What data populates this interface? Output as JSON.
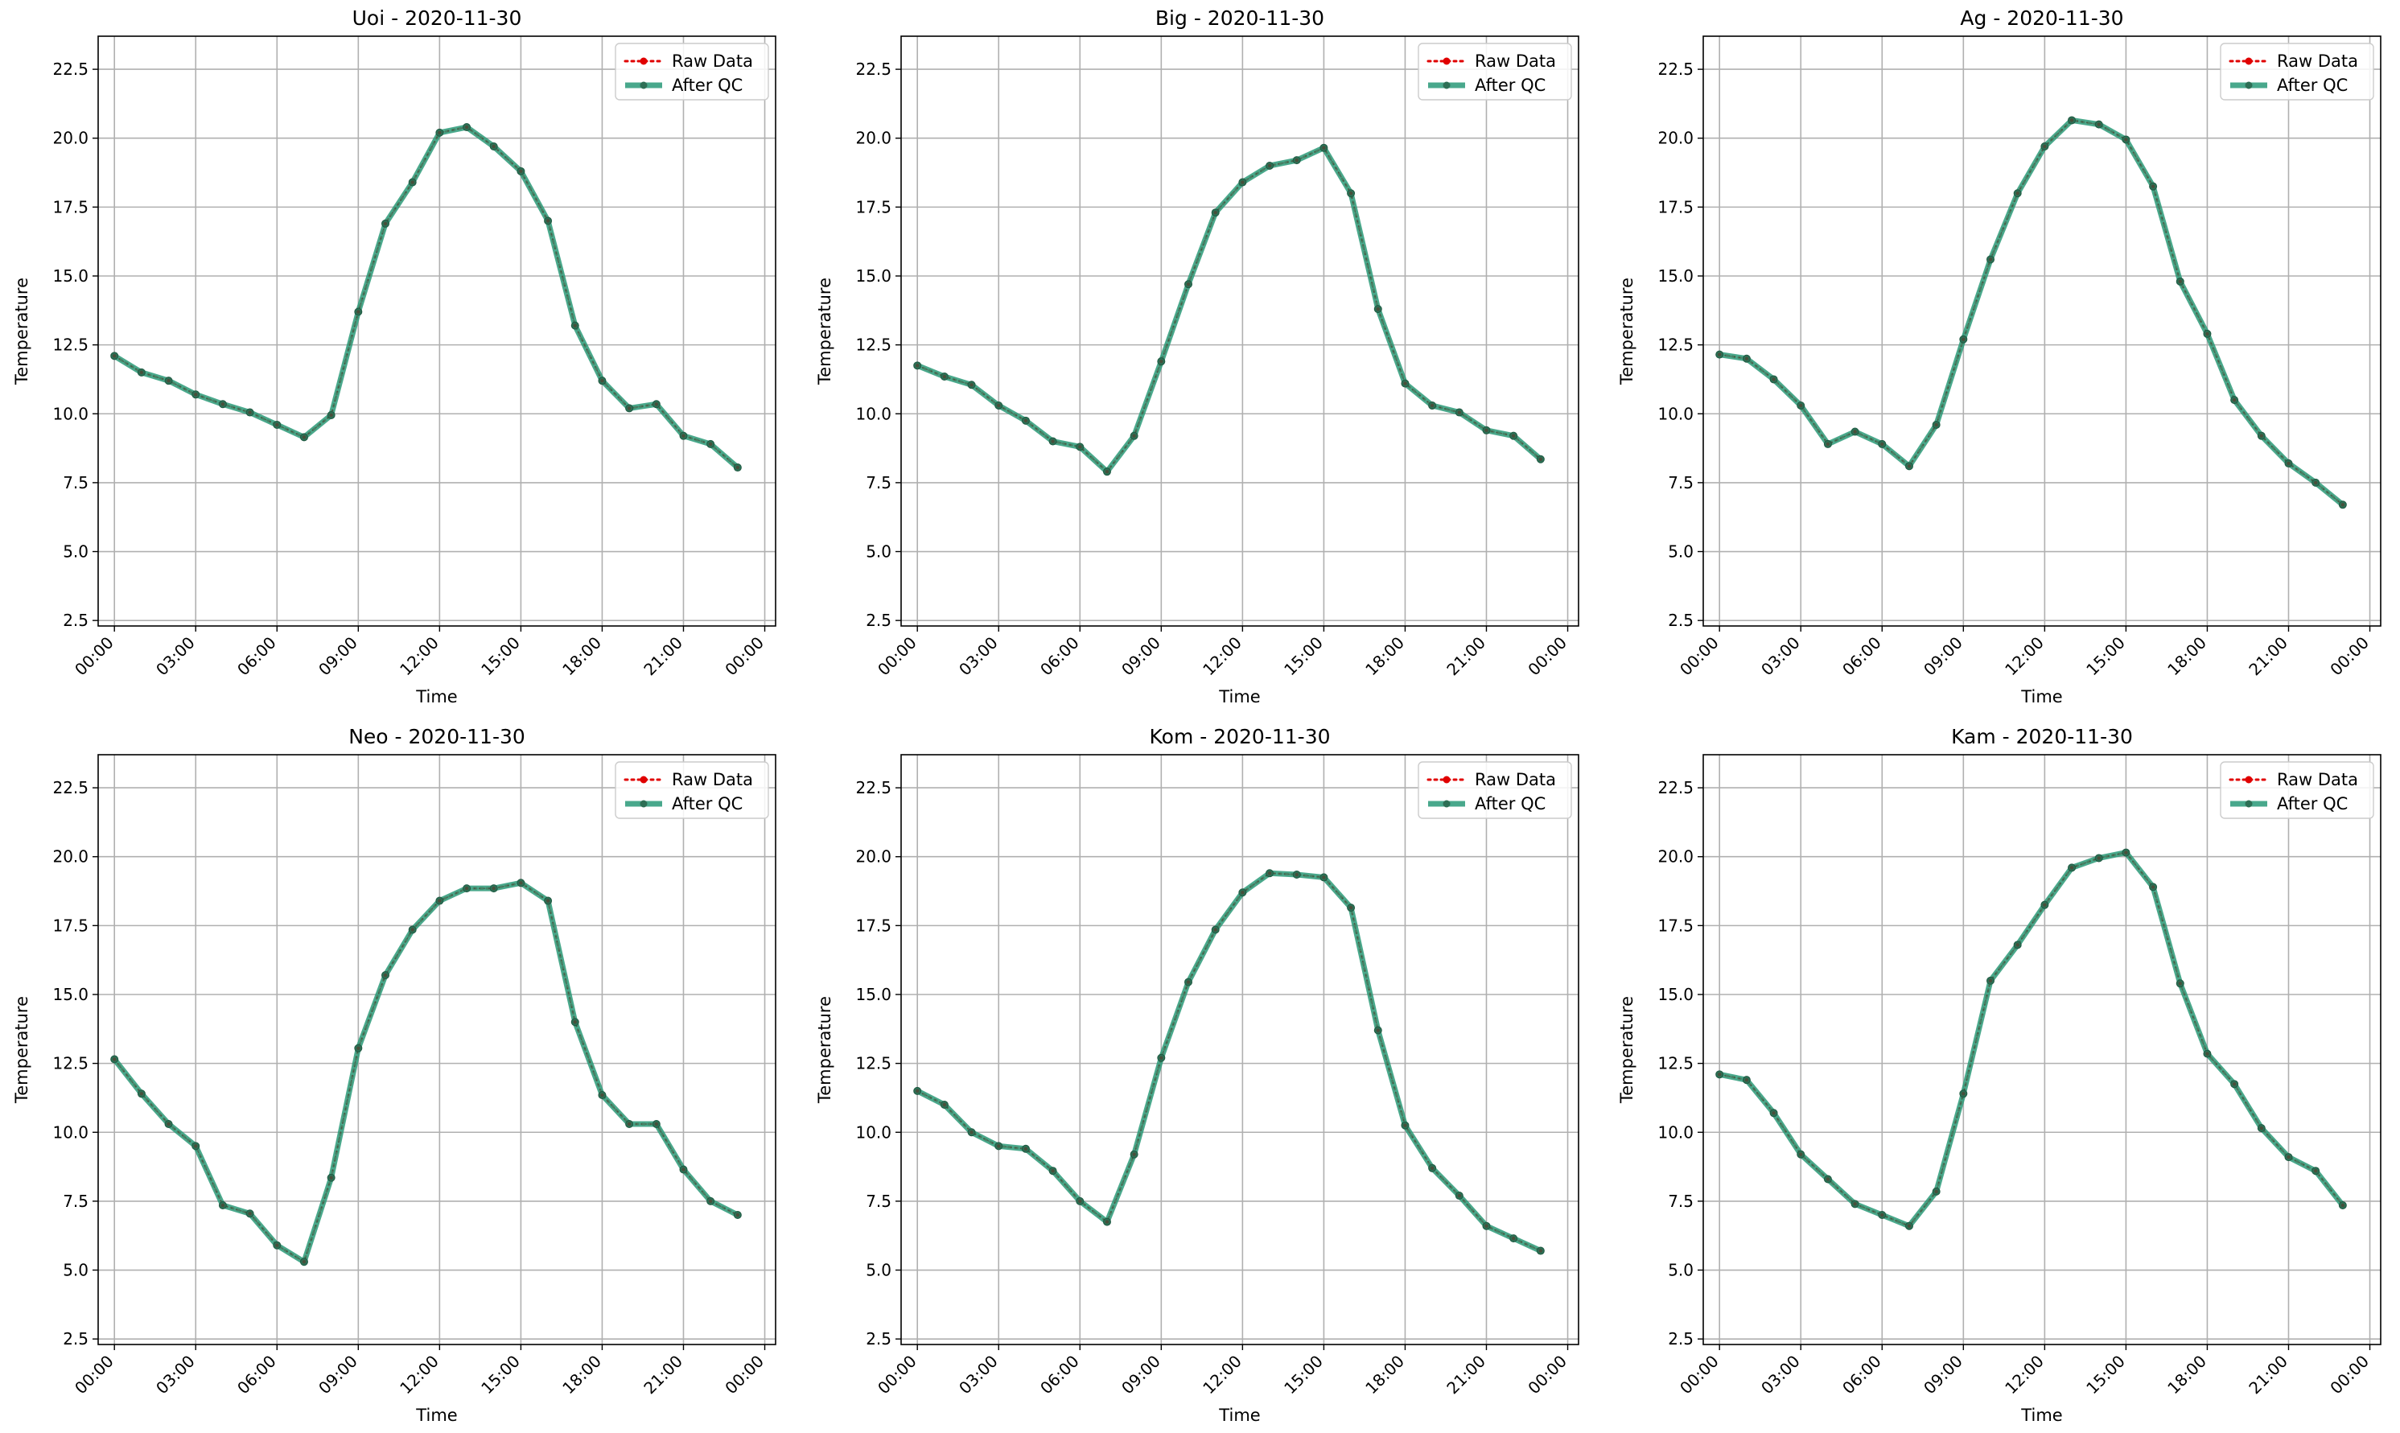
{
  "figure": {
    "xlabel": "Time",
    "ylabel": "Temperature",
    "legend": [
      "Raw Data",
      "After QC"
    ],
    "colors": {
      "raw": "#e00000",
      "qc": "#2a9a78",
      "grid": "#b0b0b0"
    }
  },
  "chart_data": [
    {
      "type": "line",
      "title": "Uoi - 2020-11-30",
      "xlabel": "Time",
      "ylabel": "Temperature",
      "xlim": [
        "00:00",
        "00:00"
      ],
      "xticks": [
        "00:00",
        "03:00",
        "06:00",
        "09:00",
        "12:00",
        "15:00",
        "18:00",
        "21:00",
        "00:00"
      ],
      "ylim": [
        2.3,
        23.7
      ],
      "yticks": [
        "2.5",
        "5.0",
        "7.5",
        "10.0",
        "12.5",
        "15.0",
        "17.5",
        "20.0",
        "22.5"
      ],
      "grid": true,
      "legend_position": "top-right",
      "x": [
        "00:00",
        "01:00",
        "02:00",
        "03:00",
        "04:00",
        "05:00",
        "06:00",
        "07:00",
        "08:00",
        "09:00",
        "10:00",
        "11:00",
        "12:00",
        "13:00",
        "14:00",
        "15:00",
        "16:00",
        "17:00",
        "18:00",
        "19:00",
        "20:00",
        "21:00",
        "22:00",
        "23:00"
      ],
      "series": [
        {
          "name": "Raw Data",
          "values": [
            12.1,
            11.5,
            11.2,
            10.7,
            10.35,
            10.05,
            9.6,
            9.15,
            9.95,
            13.7,
            16.9,
            18.4,
            20.2,
            20.4,
            19.7,
            18.8,
            17.0,
            13.2,
            11.2,
            10.2,
            10.35,
            9.2,
            8.9,
            8.05
          ]
        },
        {
          "name": "After QC",
          "values": [
            12.1,
            11.5,
            11.2,
            10.7,
            10.35,
            10.05,
            9.6,
            9.15,
            9.95,
            13.7,
            16.9,
            18.4,
            20.2,
            20.4,
            19.7,
            18.8,
            17.0,
            13.2,
            11.2,
            10.2,
            10.35,
            9.2,
            8.9,
            8.05
          ]
        }
      ]
    },
    {
      "type": "line",
      "title": "Big - 2020-11-30",
      "xlabel": "Time",
      "ylabel": "Temperature",
      "xlim": [
        "00:00",
        "00:00"
      ],
      "xticks": [
        "00:00",
        "03:00",
        "06:00",
        "09:00",
        "12:00",
        "15:00",
        "18:00",
        "21:00",
        "00:00"
      ],
      "ylim": [
        2.3,
        23.7
      ],
      "yticks": [
        "2.5",
        "5.0",
        "7.5",
        "10.0",
        "12.5",
        "15.0",
        "17.5",
        "20.0",
        "22.5"
      ],
      "grid": true,
      "legend_position": "top-right",
      "x": [
        "00:00",
        "01:00",
        "02:00",
        "03:00",
        "04:00",
        "05:00",
        "06:00",
        "07:00",
        "08:00",
        "09:00",
        "10:00",
        "11:00",
        "12:00",
        "13:00",
        "14:00",
        "15:00",
        "16:00",
        "17:00",
        "18:00",
        "19:00",
        "20:00",
        "21:00",
        "22:00",
        "23:00"
      ],
      "series": [
        {
          "name": "Raw Data",
          "values": [
            11.75,
            11.35,
            11.05,
            10.3,
            9.75,
            9.0,
            8.8,
            7.9,
            9.2,
            11.9,
            14.7,
            17.3,
            18.4,
            19.0,
            19.2,
            19.65,
            18.0,
            13.8,
            11.1,
            10.3,
            10.05,
            9.4,
            9.2,
            8.35
          ]
        },
        {
          "name": "After QC",
          "values": [
            11.75,
            11.35,
            11.05,
            10.3,
            9.75,
            9.0,
            8.8,
            7.9,
            9.2,
            11.9,
            14.7,
            17.3,
            18.4,
            19.0,
            19.2,
            19.65,
            18.0,
            13.8,
            11.1,
            10.3,
            10.05,
            9.4,
            9.2,
            8.35
          ]
        }
      ]
    },
    {
      "type": "line",
      "title": "Ag - 2020-11-30",
      "xlabel": "Time",
      "ylabel": "Temperature",
      "xlim": [
        "00:00",
        "00:00"
      ],
      "xticks": [
        "00:00",
        "03:00",
        "06:00",
        "09:00",
        "12:00",
        "15:00",
        "18:00",
        "21:00",
        "00:00"
      ],
      "ylim": [
        2.3,
        23.7
      ],
      "yticks": [
        "2.5",
        "5.0",
        "7.5",
        "10.0",
        "12.5",
        "15.0",
        "17.5",
        "20.0",
        "22.5"
      ],
      "grid": true,
      "legend_position": "top-right",
      "x": [
        "00:00",
        "01:00",
        "02:00",
        "03:00",
        "04:00",
        "05:00",
        "06:00",
        "07:00",
        "08:00",
        "09:00",
        "10:00",
        "11:00",
        "12:00",
        "13:00",
        "14:00",
        "15:00",
        "16:00",
        "17:00",
        "18:00",
        "19:00",
        "20:00",
        "21:00",
        "22:00",
        "23:00"
      ],
      "series": [
        {
          "name": "Raw Data",
          "values": [
            12.15,
            12.0,
            11.25,
            10.3,
            8.9,
            9.35,
            8.9,
            8.1,
            9.6,
            12.7,
            15.6,
            18.0,
            19.7,
            20.65,
            20.5,
            19.95,
            18.25,
            14.8,
            12.9,
            10.5,
            9.2,
            8.2,
            7.5,
            6.7
          ]
        },
        {
          "name": "After QC",
          "values": [
            12.15,
            12.0,
            11.25,
            10.3,
            8.9,
            9.35,
            8.9,
            8.1,
            9.6,
            12.7,
            15.6,
            18.0,
            19.7,
            20.65,
            20.5,
            19.95,
            18.25,
            14.8,
            12.9,
            10.5,
            9.2,
            8.2,
            7.5,
            6.7
          ]
        }
      ]
    },
    {
      "type": "line",
      "title": "Neo - 2020-11-30",
      "xlabel": "Time",
      "ylabel": "Temperature",
      "xlim": [
        "00:00",
        "00:00"
      ],
      "xticks": [
        "00:00",
        "03:00",
        "06:00",
        "09:00",
        "12:00",
        "15:00",
        "18:00",
        "21:00",
        "00:00"
      ],
      "ylim": [
        2.3,
        23.7
      ],
      "yticks": [
        "2.5",
        "5.0",
        "7.5",
        "10.0",
        "12.5",
        "15.0",
        "17.5",
        "20.0",
        "22.5"
      ],
      "grid": true,
      "legend_position": "top-right",
      "x": [
        "00:00",
        "01:00",
        "02:00",
        "03:00",
        "04:00",
        "05:00",
        "06:00",
        "07:00",
        "08:00",
        "09:00",
        "10:00",
        "11:00",
        "12:00",
        "13:00",
        "14:00",
        "15:00",
        "16:00",
        "17:00",
        "18:00",
        "19:00",
        "20:00",
        "21:00",
        "22:00",
        "23:00"
      ],
      "series": [
        {
          "name": "Raw Data",
          "values": [
            12.65,
            11.4,
            10.3,
            9.5,
            7.35,
            7.05,
            5.9,
            5.3,
            8.35,
            13.05,
            15.7,
            17.35,
            18.4,
            18.85,
            18.85,
            19.05,
            18.4,
            14.0,
            11.35,
            10.3,
            10.3,
            8.65,
            7.5,
            7.0
          ]
        },
        {
          "name": "After QC",
          "values": [
            12.65,
            11.4,
            10.3,
            9.5,
            7.35,
            7.05,
            5.9,
            5.3,
            8.35,
            13.05,
            15.7,
            17.35,
            18.4,
            18.85,
            18.85,
            19.05,
            18.4,
            14.0,
            11.35,
            10.3,
            10.3,
            8.65,
            7.5,
            7.0
          ]
        }
      ]
    },
    {
      "type": "line",
      "title": "Kom - 2020-11-30",
      "xlabel": "Time",
      "ylabel": "Temperature",
      "xlim": [
        "00:00",
        "00:00"
      ],
      "xticks": [
        "00:00",
        "03:00",
        "06:00",
        "09:00",
        "12:00",
        "15:00",
        "18:00",
        "21:00",
        "00:00"
      ],
      "ylim": [
        2.3,
        23.7
      ],
      "yticks": [
        "2.5",
        "5.0",
        "7.5",
        "10.0",
        "12.5",
        "15.0",
        "17.5",
        "20.0",
        "22.5"
      ],
      "grid": true,
      "legend_position": "top-right",
      "x": [
        "00:00",
        "01:00",
        "02:00",
        "03:00",
        "04:00",
        "05:00",
        "06:00",
        "07:00",
        "08:00",
        "09:00",
        "10:00",
        "11:00",
        "12:00",
        "13:00",
        "14:00",
        "15:00",
        "16:00",
        "17:00",
        "18:00",
        "19:00",
        "20:00",
        "21:00",
        "22:00",
        "23:00"
      ],
      "series": [
        {
          "name": "Raw Data",
          "values": [
            11.5,
            11.0,
            10.0,
            9.5,
            9.4,
            8.6,
            7.5,
            6.75,
            9.2,
            12.7,
            15.45,
            17.35,
            18.7,
            19.4,
            19.35,
            19.25,
            18.15,
            13.7,
            10.25,
            8.7,
            7.7,
            6.6,
            6.15,
            5.7
          ]
        },
        {
          "name": "After QC",
          "values": [
            11.5,
            11.0,
            10.0,
            9.5,
            9.4,
            8.6,
            7.5,
            6.75,
            9.2,
            12.7,
            15.45,
            17.35,
            18.7,
            19.4,
            19.35,
            19.25,
            18.15,
            13.7,
            10.25,
            8.7,
            7.7,
            6.6,
            6.15,
            5.7
          ]
        }
      ]
    },
    {
      "type": "line",
      "title": "Kam - 2020-11-30",
      "xlabel": "Time",
      "ylabel": "Temperature",
      "xlim": [
        "00:00",
        "00:00"
      ],
      "xticks": [
        "00:00",
        "03:00",
        "06:00",
        "09:00",
        "12:00",
        "15:00",
        "18:00",
        "21:00",
        "00:00"
      ],
      "ylim": [
        2.3,
        23.7
      ],
      "yticks": [
        "2.5",
        "5.0",
        "7.5",
        "10.0",
        "12.5",
        "15.0",
        "17.5",
        "20.0",
        "22.5"
      ],
      "grid": true,
      "legend_position": "top-right",
      "x": [
        "00:00",
        "01:00",
        "02:00",
        "03:00",
        "04:00",
        "05:00",
        "06:00",
        "07:00",
        "08:00",
        "09:00",
        "10:00",
        "11:00",
        "12:00",
        "13:00",
        "14:00",
        "15:00",
        "16:00",
        "17:00",
        "18:00",
        "19:00",
        "20:00",
        "21:00",
        "22:00",
        "23:00"
      ],
      "series": [
        {
          "name": "Raw Data",
          "values": [
            12.1,
            11.9,
            10.7,
            9.2,
            8.3,
            7.4,
            7.0,
            6.6,
            7.85,
            11.4,
            15.5,
            16.8,
            18.25,
            19.6,
            19.95,
            20.15,
            18.9,
            15.4,
            12.85,
            11.75,
            10.15,
            9.1,
            8.6,
            7.35
          ]
        },
        {
          "name": "After QC",
          "values": [
            12.1,
            11.9,
            10.7,
            9.2,
            8.3,
            7.4,
            7.0,
            6.6,
            7.85,
            11.4,
            15.5,
            16.8,
            18.25,
            19.6,
            19.95,
            20.15,
            18.9,
            15.4,
            12.85,
            11.75,
            10.15,
            9.1,
            8.6,
            7.35
          ]
        }
      ]
    }
  ]
}
